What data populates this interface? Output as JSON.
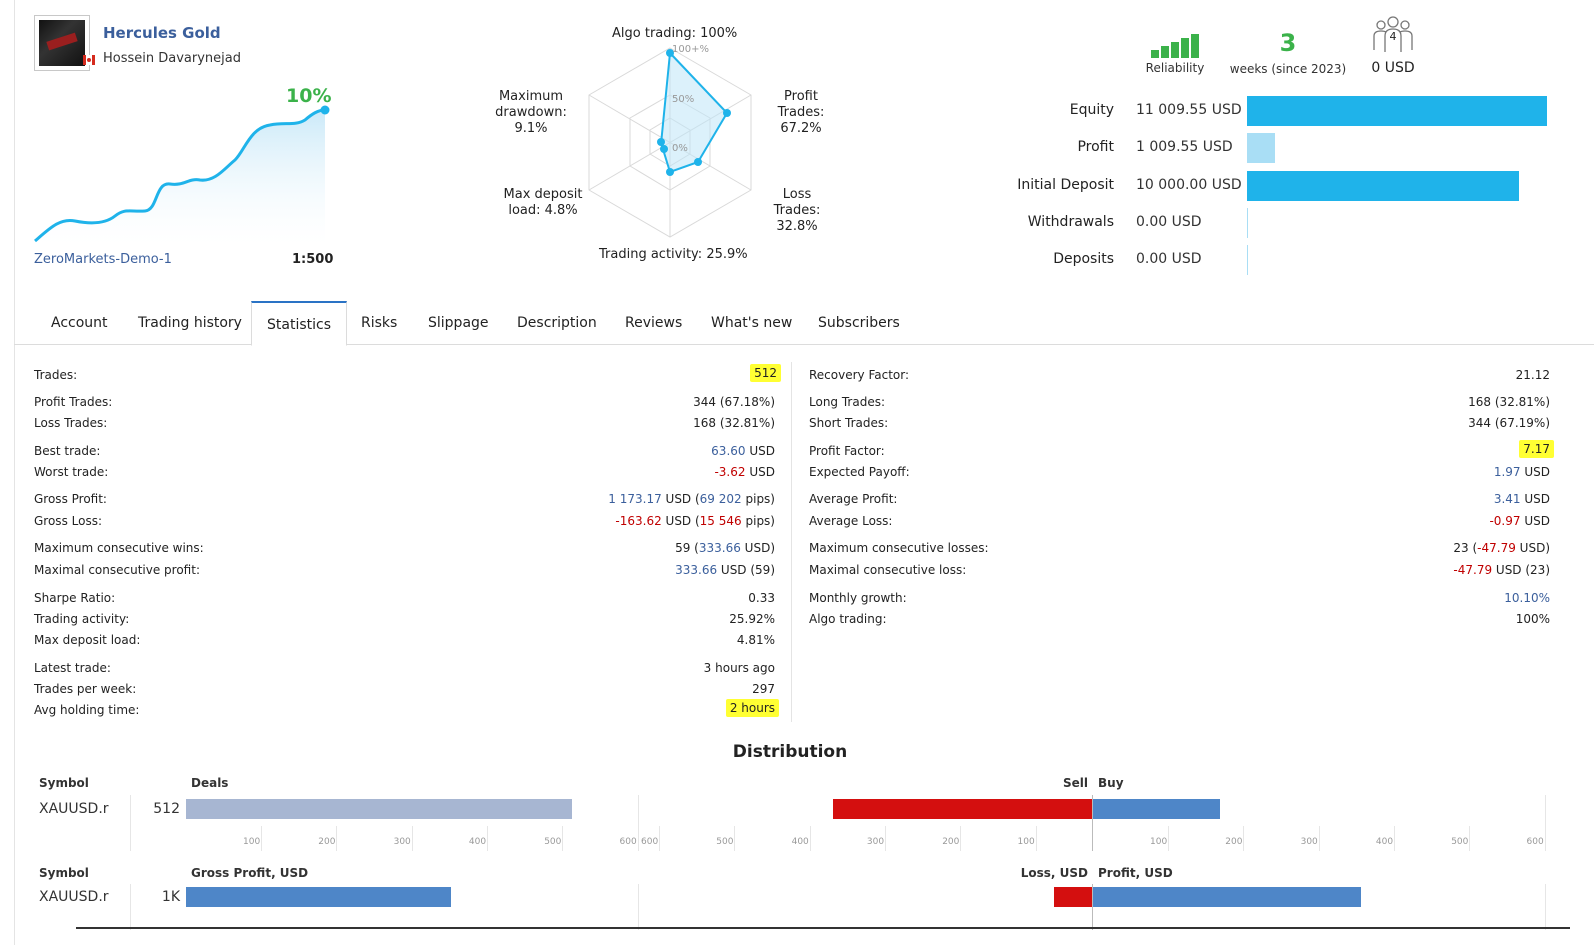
{
  "header": {
    "signal_name": "Hercules Gold",
    "author": "Hossein Davarynejad",
    "growth": "10%",
    "server": "ZeroMarkets-Demo-1",
    "leverage": "1:500"
  },
  "radar": {
    "algo_trading": "Algo trading: 100%",
    "profit_trades": [
      "Profit Trades:",
      "67.2%"
    ],
    "loss_trades": [
      "Loss Trades:",
      "32.8%"
    ],
    "trading_activity": "Trading activity: 25.9%",
    "max_deposit_load": [
      "Max deposit",
      "load: 4.8%"
    ],
    "max_drawdown": [
      "Maximum",
      "drawdown: 9.1%"
    ],
    "scale_100": "100+%",
    "scale_50": "50%",
    "scale_0": "0%"
  },
  "reliability": {
    "label": "Reliability",
    "bars_filled": 5,
    "color": "#3bb24a"
  },
  "weeks": {
    "value": "3",
    "label": "weeks (since 2023)"
  },
  "subscribers": {
    "count": "4",
    "value": "0 USD"
  },
  "balances": [
    {
      "label": "Equity",
      "value": "11 009.55 USD",
      "fraction": 1.0,
      "color": "#1fb3ea"
    },
    {
      "label": "Profit",
      "value": "1 009.55 USD",
      "fraction": 0.0917,
      "color": "#a9def5"
    },
    {
      "label": "Initial Deposit",
      "value": "10 000.00 USD",
      "fraction": 0.908,
      "color": "#1fb3ea"
    },
    {
      "label": "Withdrawals",
      "value": "0.00 USD",
      "fraction": 0,
      "color": "#a9def5"
    },
    {
      "label": "Deposits",
      "value": "0.00 USD",
      "fraction": 0,
      "color": "#a9def5"
    }
  ],
  "tabs": [
    "Account",
    "Trading history",
    "Statistics",
    "Risks",
    "Slippage",
    "Description",
    "Reviews",
    "What's new",
    "Subscribers"
  ],
  "stats_left": [
    {
      "label": "Trades:",
      "value": "512"
    },
    {
      "label": "Profit Trades:",
      "value": "344 (67.18%)"
    },
    {
      "label": "Loss Trades:",
      "value": "168 (32.81%)"
    },
    {
      "label": "Best trade:",
      "value_a": "63.60",
      "value_b": " USD"
    },
    {
      "label": "Worst trade:",
      "value_a": "-3.62",
      "value_b": " USD"
    },
    {
      "label": "Gross Profit:",
      "value_a": "1 173.17",
      "value_b": " USD (",
      "value_c": "69 202",
      "value_d": " pips)"
    },
    {
      "label": "Gross Loss:",
      "value_a": "-163.62",
      "value_b": " USD (",
      "value_c": "15 546",
      "value_d": " pips)"
    },
    {
      "label": "Maximum consecutive wins:",
      "value_a": "59 (",
      "value_b": "333.66",
      "value_c": " USD)"
    },
    {
      "label": "Maximal consecutive profit:",
      "value_a": "333.66",
      "value_b": " USD (59)"
    },
    {
      "label": "Sharpe Ratio:",
      "value": "0.33"
    },
    {
      "label": "Trading activity:",
      "value": "25.92%"
    },
    {
      "label": "Max deposit load:",
      "value": "4.81%"
    },
    {
      "label": "Latest trade:",
      "value": "3 hours ago"
    },
    {
      "label": "Trades per week:",
      "value": "297"
    },
    {
      "label": "Avg holding time:",
      "value": "2 hours"
    }
  ],
  "stats_right": [
    {
      "label": "Recovery Factor:",
      "value": "21.12"
    },
    {
      "label": "Long Trades:",
      "value": "168 (32.81%)"
    },
    {
      "label": "Short Trades:",
      "value": "344 (67.19%)"
    },
    {
      "label": "Profit Factor:",
      "value": "7.17"
    },
    {
      "label": "Expected Payoff:",
      "value_a": "1.97",
      "value_b": " USD"
    },
    {
      "label": "Average Profit:",
      "value_a": "3.41",
      "value_b": " USD"
    },
    {
      "label": "Average Loss:",
      "value_a": "-0.97",
      "value_b": " USD"
    },
    {
      "label": "Maximum consecutive losses:",
      "value_a": "23 (",
      "value_b": "-47.79",
      "value_c": " USD)"
    },
    {
      "label": "Maximal consecutive loss:",
      "value_a": "-47.79",
      "value_b": " USD (23)"
    },
    {
      "label": "Monthly growth:",
      "value": "10.10%"
    },
    {
      "label": "Algo trading:",
      "value": "100%"
    }
  ],
  "distribution": {
    "title": "Distribution",
    "row1": {
      "symbol_header": "Symbol",
      "deals_header": "Deals",
      "sell_header": "Sell",
      "buy_header": "Buy",
      "symbol": "XAUUSD.r",
      "deals": "512",
      "deals_value": 512,
      "sell_value": 344,
      "buy_value": 168,
      "ticks_left": [
        "100",
        "200",
        "300",
        "400",
        "500",
        "600"
      ],
      "ticks_mid": [
        "600",
        "500",
        "400",
        "300",
        "200",
        "100"
      ],
      "ticks_right": [
        "100",
        "200",
        "300",
        "400",
        "500",
        "600"
      ]
    },
    "row2": {
      "symbol_header": "Symbol",
      "gross_header": "Gross Profit, USD",
      "loss_header": "Loss, USD",
      "profit_header": "Profit, USD",
      "symbol": "XAUUSD.r",
      "gross": "1K",
      "gross_value": 1173.17,
      "loss_value": 163.62,
      "profit_value": 1173.17
    },
    "colors": {
      "deals": "#a7b6d2",
      "sell": "#d40f0f",
      "buy": "#4e86c8",
      "loss": "#d40f0f",
      "profit": "#4e86c8"
    }
  }
}
